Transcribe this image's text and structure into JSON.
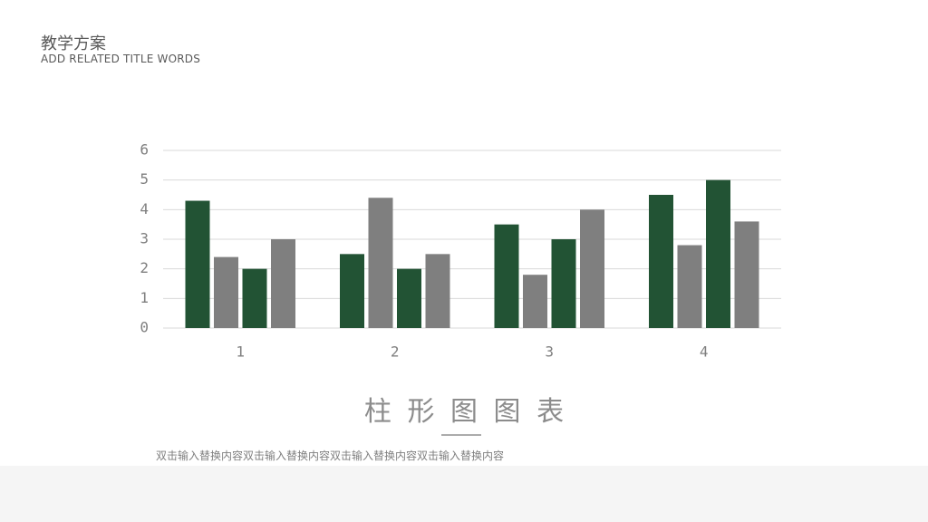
{
  "header": {
    "title": "教学方案",
    "subtitle": "ADD RELATED TITLE WORDS"
  },
  "chart_data": {
    "type": "bar",
    "title": "柱 形 图 图 表",
    "categories": [
      "1",
      "2",
      "3",
      "4"
    ],
    "series": [
      {
        "color": "#225334",
        "values": [
          4.3,
          2.5,
          3.5,
          4.5
        ]
      },
      {
        "color": "#7f7f7f",
        "values": [
          2.4,
          4.4,
          1.8,
          2.8
        ]
      },
      {
        "color": "#225334",
        "values": [
          2,
          2,
          3,
          5
        ]
      },
      {
        "color": "#7f7f7f",
        "values": [
          3,
          2.5,
          4,
          3.6
        ]
      }
    ],
    "ylim": [
      0,
      6
    ],
    "yticks": [
      0,
      1,
      2,
      3,
      4,
      5,
      6
    ],
    "grid": true
  },
  "description": "双击输入替换内容双击输入替换内容双击输入替换内容双击输入替换内容"
}
